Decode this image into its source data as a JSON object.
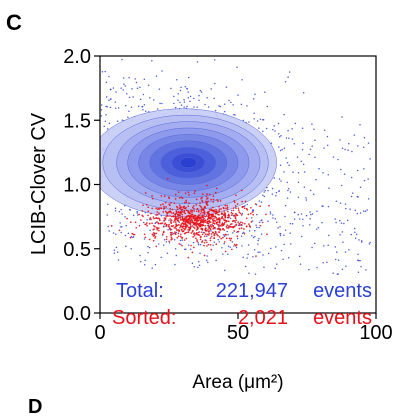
{
  "panel_label": "C",
  "next_panel_label": "D",
  "chart_data": {
    "type": "scatter",
    "xlabel": "Area (μm²)",
    "ylabel": "LCIB-Clover CV",
    "xlim": [
      0,
      100
    ],
    "ylim": [
      0,
      2.0
    ],
    "x_ticks": [
      0,
      50,
      100
    ],
    "x_tick_labels": [
      "0",
      "50",
      "100"
    ],
    "y_ticks": [
      0.0,
      0.5,
      1.0,
      1.5,
      2.0
    ],
    "y_tick_labels": [
      "0.0",
      "0.5",
      "1.0",
      "1.5",
      "2.0"
    ],
    "grid": false,
    "series": [
      {
        "name": "Total",
        "count_label": "221,947",
        "events_label": "events",
        "color": "#2a3fd8",
        "density_center": [
          32,
          1.17
        ],
        "density_peak": 1.17
      },
      {
        "name": "Sorted",
        "count_label": "2,021",
        "events_label": "events",
        "color": "#e8101a",
        "density_center": [
          35,
          0.72
        ]
      }
    ],
    "legend": {
      "placement": "bottom-right",
      "total_prefix": "Total:",
      "sorted_prefix": "Sorted:"
    }
  }
}
